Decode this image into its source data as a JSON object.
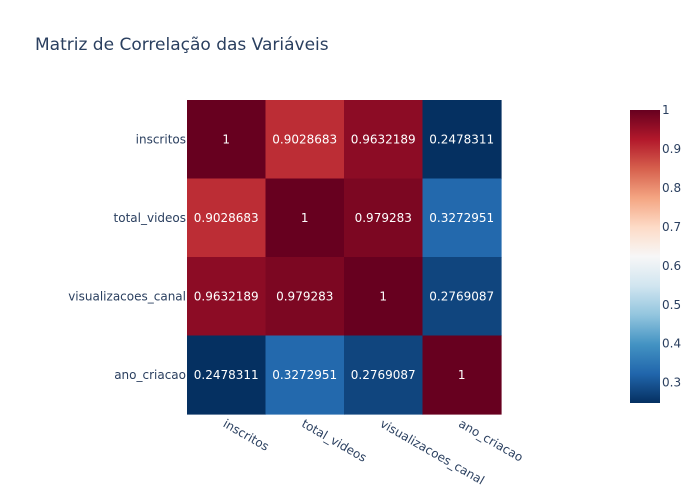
{
  "chart_data": {
    "type": "heatmap",
    "title": "Matriz de Correlação das Variáveis",
    "x": [
      "inscritos",
      "total_videos",
      "visualizacoes_canal",
      "ano_criacao"
    ],
    "y": [
      "inscritos",
      "total_videos",
      "visualizacoes_canal",
      "ano_criacao"
    ],
    "z": [
      [
        1,
        0.9028683,
        0.9632189,
        0.2478311
      ],
      [
        0.9028683,
        1,
        0.979283,
        0.3272951
      ],
      [
        0.9632189,
        0.979283,
        1,
        0.2769087
      ],
      [
        0.2478311,
        0.3272951,
        0.2769087,
        1
      ]
    ],
    "cell_text": [
      [
        "1",
        "0.9028683",
        "0.9632189",
        "0.2478311"
      ],
      [
        "0.9028683",
        "1",
        "0.979283",
        "0.3272951"
      ],
      [
        "0.9632189",
        "0.979283",
        "1",
        "0.2769087"
      ],
      [
        "0.2478311",
        "0.3272951",
        "0.2769087",
        "1"
      ]
    ],
    "colorscale": "RdBu_r",
    "zmin": 0.2478311,
    "zmax": 1,
    "colorbar_ticks": [
      0.3,
      0.4,
      0.5,
      0.6,
      0.7,
      0.8,
      0.9,
      1
    ],
    "colorbar_tick_labels": [
      "0.3",
      "0.4",
      "0.5",
      "0.6",
      "0.7",
      "0.8",
      "0.9",
      "1"
    ],
    "x_tick_angle": 30,
    "grid": false
  }
}
